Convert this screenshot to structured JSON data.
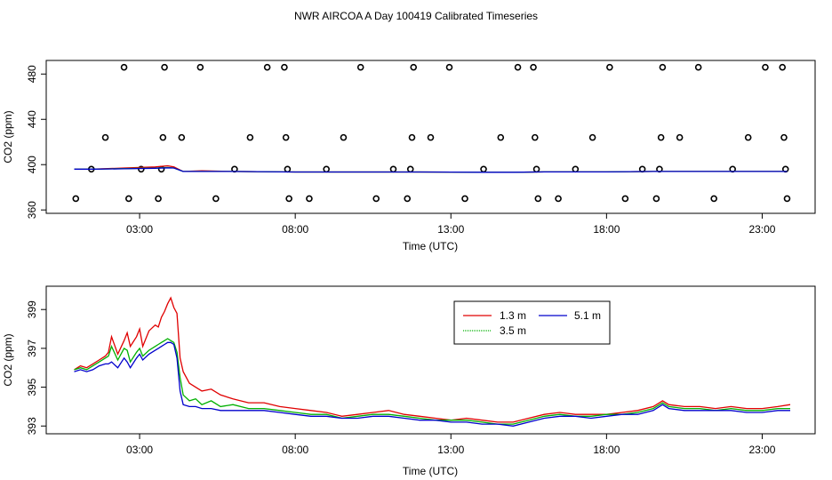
{
  "title": "NWR AIRCOA A  Day 100419  Calibrated Timeseries",
  "colors": {
    "h1_3": "#e00000",
    "h3_5": "#00b000",
    "h5_1": "#0000cc",
    "axis": "#000000"
  },
  "chart_data": [
    {
      "type": "scatter",
      "xlabel": "Time (UTC)",
      "ylabel": "CO2 (ppm)",
      "xlim": [
        0,
        24.7
      ],
      "ylim": [
        357,
        492
      ],
      "x_ticks": [
        3,
        8,
        13,
        18,
        23
      ],
      "x_tick_labels": [
        "03:00",
        "08:00",
        "13:00",
        "18:00",
        "23:00"
      ],
      "y_ticks": [
        360,
        400,
        440,
        480
      ],
      "y_tick_labels": [
        "360",
        "400",
        "440",
        "480"
      ],
      "reference_points": [
        {
          "x": 0.95,
          "y": 370
        },
        {
          "x": 1.45,
          "y": 396
        },
        {
          "x": 1.9,
          "y": 424
        },
        {
          "x": 2.5,
          "y": 486
        },
        {
          "x": 2.65,
          "y": 370
        },
        {
          "x": 3.05,
          "y": 396
        },
        {
          "x": 3.6,
          "y": 370
        },
        {
          "x": 3.7,
          "y": 396
        },
        {
          "x": 3.75,
          "y": 424
        },
        {
          "x": 3.8,
          "y": 486
        },
        {
          "x": 4.35,
          "y": 424
        },
        {
          "x": 4.95,
          "y": 486
        },
        {
          "x": 5.45,
          "y": 370
        },
        {
          "x": 6.05,
          "y": 396
        },
        {
          "x": 6.55,
          "y": 424
        },
        {
          "x": 7.1,
          "y": 486
        },
        {
          "x": 7.65,
          "y": 486
        },
        {
          "x": 7.7,
          "y": 424
        },
        {
          "x": 7.75,
          "y": 396
        },
        {
          "x": 7.8,
          "y": 370
        },
        {
          "x": 8.45,
          "y": 370
        },
        {
          "x": 9.0,
          "y": 396
        },
        {
          "x": 9.55,
          "y": 424
        },
        {
          "x": 10.1,
          "y": 486
        },
        {
          "x": 10.6,
          "y": 370
        },
        {
          "x": 11.15,
          "y": 396
        },
        {
          "x": 11.6,
          "y": 370
        },
        {
          "x": 11.7,
          "y": 396
        },
        {
          "x": 11.75,
          "y": 424
        },
        {
          "x": 11.8,
          "y": 486
        },
        {
          "x": 12.35,
          "y": 424
        },
        {
          "x": 12.95,
          "y": 486
        },
        {
          "x": 13.45,
          "y": 370
        },
        {
          "x": 14.05,
          "y": 396
        },
        {
          "x": 14.6,
          "y": 424
        },
        {
          "x": 15.15,
          "y": 486
        },
        {
          "x": 15.65,
          "y": 486
        },
        {
          "x": 15.7,
          "y": 424
        },
        {
          "x": 15.75,
          "y": 396
        },
        {
          "x": 15.8,
          "y": 370
        },
        {
          "x": 16.45,
          "y": 370
        },
        {
          "x": 17.0,
          "y": 396
        },
        {
          "x": 17.55,
          "y": 424
        },
        {
          "x": 18.1,
          "y": 486
        },
        {
          "x": 18.6,
          "y": 370
        },
        {
          "x": 19.15,
          "y": 396
        },
        {
          "x": 19.6,
          "y": 370
        },
        {
          "x": 19.7,
          "y": 396
        },
        {
          "x": 19.75,
          "y": 424
        },
        {
          "x": 19.8,
          "y": 486
        },
        {
          "x": 20.35,
          "y": 424
        },
        {
          "x": 20.95,
          "y": 486
        },
        {
          "x": 21.45,
          "y": 370
        },
        {
          "x": 22.05,
          "y": 396
        },
        {
          "x": 22.55,
          "y": 424
        },
        {
          "x": 23.1,
          "y": 486
        },
        {
          "x": 23.65,
          "y": 486
        },
        {
          "x": 23.7,
          "y": 424
        },
        {
          "x": 23.75,
          "y": 396
        },
        {
          "x": 23.8,
          "y": 370
        }
      ],
      "series": [
        {
          "x": [
            0.9,
            1.5,
            2.5,
            3.5,
            3.9,
            4.1,
            4.4,
            5.0,
            6.0,
            8.0,
            10.0,
            12.0,
            14.0,
            15.0,
            16.0,
            18.0,
            19.5,
            20.0,
            22.0,
            23.8
          ],
          "values": [
            396,
            396,
            397,
            398,
            399,
            398,
            394,
            394.5,
            394,
            393.5,
            393.5,
            393.5,
            393.3,
            393.3,
            393.6,
            393.6,
            394,
            394,
            394,
            394
          ],
          "color": "#e00000"
        },
        {
          "x": [
            0.9,
            1.5,
            2.5,
            3.5,
            3.9,
            4.1,
            4.4,
            5.0,
            6.0,
            8.0,
            10.0,
            12.0,
            14.0,
            15.0,
            16.0,
            18.0,
            19.5,
            20.0,
            22.0,
            23.8
          ],
          "values": [
            396,
            396,
            396.5,
            397,
            397.5,
            397,
            394,
            394,
            394,
            393.5,
            393.5,
            393.5,
            393.3,
            393.3,
            393.6,
            393.6,
            394,
            394,
            394,
            394
          ],
          "color": "#00b000"
        },
        {
          "x": [
            0.9,
            1.5,
            2.5,
            3.5,
            3.9,
            4.1,
            4.4,
            5.0,
            6.0,
            8.0,
            10.0,
            12.0,
            14.0,
            15.0,
            16.0,
            18.0,
            19.5,
            20.0,
            22.0,
            23.8
          ],
          "values": [
            396,
            396,
            396.3,
            396.8,
            397.2,
            397,
            394,
            394,
            394,
            393.5,
            393.5,
            393.5,
            393.3,
            393.3,
            393.6,
            393.6,
            394,
            394,
            394,
            394
          ],
          "color": "#0000cc"
        }
      ]
    },
    {
      "type": "line",
      "xlabel": "Time (UTC)",
      "ylabel": "CO2 (ppm)",
      "xlim": [
        0,
        24.7
      ],
      "ylim": [
        392.6,
        400.2
      ],
      "x_ticks": [
        3,
        8,
        13,
        18,
        23
      ],
      "x_tick_labels": [
        "03:00",
        "08:00",
        "13:00",
        "18:00",
        "23:00"
      ],
      "y_ticks": [
        393,
        395,
        397,
        399
      ],
      "y_tick_labels": [
        "393",
        "395",
        "397",
        "399"
      ],
      "legend_position": "top-right",
      "series": [
        {
          "name": "1.3 m",
          "color": "#e00000",
          "x": [
            0.9,
            1.1,
            1.3,
            1.5,
            1.7,
            1.9,
            2.0,
            2.1,
            2.3,
            2.5,
            2.6,
            2.7,
            2.9,
            3.0,
            3.1,
            3.3,
            3.5,
            3.6,
            3.7,
            3.8,
            3.9,
            4.0,
            4.1,
            4.2,
            4.3,
            4.4,
            4.6,
            4.8,
            5.0,
            5.3,
            5.6,
            6.0,
            6.5,
            7.0,
            7.5,
            8.0,
            8.5,
            9.0,
            9.5,
            10.0,
            10.5,
            11.0,
            11.5,
            12.0,
            12.5,
            13.0,
            13.5,
            14.0,
            14.5,
            15.0,
            15.5,
            16.0,
            16.5,
            17.0,
            17.5,
            18.0,
            18.5,
            19.0,
            19.5,
            19.8,
            20.0,
            20.5,
            21.0,
            21.5,
            22.0,
            22.5,
            23.0,
            23.5,
            23.9
          ],
          "values": [
            395.9,
            396.1,
            396.0,
            396.2,
            396.4,
            396.6,
            396.8,
            397.6,
            396.7,
            397.4,
            397.8,
            397.1,
            397.6,
            398.0,
            397.1,
            397.9,
            398.2,
            398.1,
            398.6,
            398.9,
            399.3,
            399.6,
            399.1,
            398.8,
            396.5,
            395.8,
            395.2,
            395.0,
            394.8,
            394.9,
            394.6,
            394.4,
            394.2,
            394.2,
            394.0,
            393.9,
            393.8,
            393.7,
            393.5,
            393.6,
            393.7,
            393.8,
            393.6,
            393.5,
            393.4,
            393.3,
            393.4,
            393.3,
            393.2,
            393.2,
            393.4,
            393.6,
            393.7,
            393.6,
            393.6,
            393.6,
            393.7,
            393.8,
            394.0,
            394.3,
            394.1,
            394.0,
            394.0,
            393.9,
            394.0,
            393.9,
            393.9,
            394.0,
            394.1
          ]
        },
        {
          "name": "3.5 m",
          "color": "#00b000",
          "x": [
            0.9,
            1.1,
            1.3,
            1.5,
            1.7,
            1.9,
            2.0,
            2.1,
            2.3,
            2.5,
            2.6,
            2.7,
            2.9,
            3.0,
            3.1,
            3.3,
            3.5,
            3.6,
            3.7,
            3.8,
            3.9,
            4.0,
            4.1,
            4.2,
            4.3,
            4.4,
            4.6,
            4.8,
            5.0,
            5.3,
            5.6,
            6.0,
            6.5,
            7.0,
            7.5,
            8.0,
            8.5,
            9.0,
            9.5,
            10.0,
            10.5,
            11.0,
            11.5,
            12.0,
            12.5,
            13.0,
            13.5,
            14.0,
            14.5,
            15.0,
            15.5,
            16.0,
            16.5,
            17.0,
            17.5,
            18.0,
            18.5,
            19.0,
            19.5,
            19.8,
            20.0,
            20.5,
            21.0,
            21.5,
            22.0,
            22.5,
            23.0,
            23.5,
            23.9
          ],
          "values": [
            395.9,
            396.0,
            395.9,
            396.1,
            396.3,
            396.5,
            396.6,
            397.1,
            396.4,
            397.0,
            396.9,
            396.3,
            396.8,
            397.0,
            396.6,
            396.9,
            397.1,
            397.2,
            397.3,
            397.4,
            397.5,
            397.4,
            397.3,
            396.8,
            395.5,
            394.6,
            394.3,
            394.4,
            394.1,
            394.3,
            394.0,
            394.1,
            393.9,
            393.9,
            393.8,
            393.7,
            393.6,
            393.6,
            393.4,
            393.5,
            393.6,
            393.6,
            393.5,
            393.4,
            393.3,
            393.3,
            393.3,
            393.2,
            393.1,
            393.1,
            393.3,
            393.5,
            393.6,
            393.5,
            393.5,
            393.6,
            393.6,
            393.7,
            393.9,
            394.2,
            394.0,
            393.9,
            393.9,
            393.8,
            393.9,
            393.8,
            393.8,
            393.9,
            393.9
          ]
        },
        {
          "name": "5.1 m",
          "color": "#0000cc",
          "x": [
            0.9,
            1.1,
            1.3,
            1.5,
            1.7,
            1.9,
            2.0,
            2.1,
            2.3,
            2.5,
            2.6,
            2.7,
            2.9,
            3.0,
            3.1,
            3.3,
            3.5,
            3.6,
            3.7,
            3.8,
            3.9,
            4.0,
            4.1,
            4.2,
            4.3,
            4.4,
            4.6,
            4.8,
            5.0,
            5.3,
            5.6,
            6.0,
            6.5,
            7.0,
            7.5,
            8.0,
            8.5,
            9.0,
            9.5,
            10.0,
            10.5,
            11.0,
            11.5,
            12.0,
            12.5,
            13.0,
            13.5,
            14.0,
            14.5,
            15.0,
            15.5,
            16.0,
            16.5,
            17.0,
            17.5,
            18.0,
            18.5,
            19.0,
            19.5,
            19.8,
            20.0,
            20.5,
            21.0,
            21.5,
            22.0,
            22.5,
            23.0,
            23.5,
            23.9
          ],
          "values": [
            395.8,
            395.9,
            395.8,
            395.9,
            396.1,
            396.2,
            396.2,
            396.3,
            396.0,
            396.5,
            396.3,
            396.0,
            396.5,
            396.7,
            396.4,
            396.7,
            396.9,
            397.0,
            397.1,
            397.2,
            397.3,
            397.3,
            397.2,
            396.5,
            394.8,
            394.1,
            394.0,
            394.0,
            393.9,
            393.9,
            393.8,
            393.8,
            393.8,
            393.8,
            393.7,
            393.6,
            393.5,
            393.5,
            393.4,
            393.4,
            393.5,
            393.5,
            393.4,
            393.3,
            393.3,
            393.2,
            393.2,
            393.1,
            393.1,
            393.0,
            393.2,
            393.4,
            393.5,
            393.5,
            393.4,
            393.5,
            393.6,
            393.6,
            393.8,
            394.1,
            393.9,
            393.8,
            393.8,
            393.8,
            393.8,
            393.7,
            393.7,
            393.8,
            393.8
          ]
        }
      ]
    }
  ]
}
